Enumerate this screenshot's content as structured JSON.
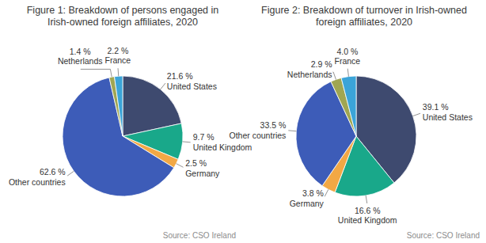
{
  "chart_data": [
    {
      "type": "pie",
      "title": "Figure 1: Breakdown of persons engaged in\nIrish-owned foreign affiliates, 2020",
      "categories": [
        "United States",
        "United Kingdom",
        "Germany",
        "Other countries",
        "Netherlands",
        "France"
      ],
      "values": [
        21.6,
        9.7,
        2.5,
        62.6,
        1.4,
        2.2
      ],
      "value_labels": [
        "21.6 %",
        "9.7 %",
        "2.5 %",
        "62.6 %",
        "1.4 %",
        "2.2 %"
      ],
      "colors": [
        "#3e4a6f",
        "#19a88a",
        "#f2a845",
        "#3d5cb8",
        "#a0a652",
        "#3ba4d8"
      ],
      "data_labels": true,
      "source": "Source: CSO Ireland"
    },
    {
      "type": "pie",
      "title": "Figure 2: Breakdown of turnover in Irish-owned\nforeign affiliates, 2020",
      "categories": [
        "United States",
        "United Kingdom",
        "Germany",
        "Other countries",
        "Netherlands",
        "France"
      ],
      "values": [
        39.1,
        16.6,
        3.8,
        33.5,
        2.9,
        4.0
      ],
      "value_labels": [
        "39.1 %",
        "16.6 %",
        "3.8 %",
        "33.5 %",
        "2.9 %",
        "4.0 %"
      ],
      "colors": [
        "#3e4a6f",
        "#19a88a",
        "#f2a845",
        "#3d5cb8",
        "#a0a652",
        "#3ba4d8"
      ],
      "data_labels": true,
      "source": "Source: CSO Ireland"
    }
  ]
}
